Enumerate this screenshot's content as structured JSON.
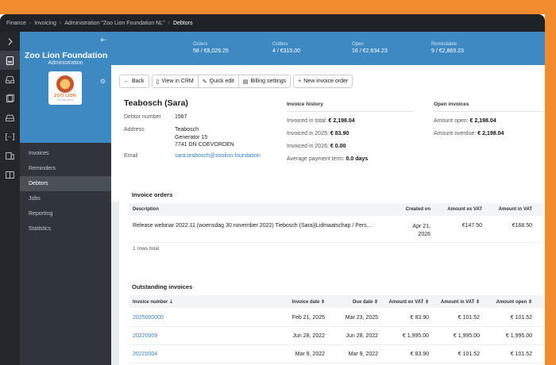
{
  "breadcrumb": {
    "items": [
      "Finance",
      "Invoicing",
      "Administration \"Zoo Lion Foundation NL\""
    ],
    "current": "Debtors",
    "separator": "›"
  },
  "sidebar": {
    "org_name": "Zoo Lion Foundation",
    "org_sub": "Administration",
    "logo_text": "ZOO LION",
    "logo_sub": "FOUNDATION",
    "items": [
      {
        "label": "Invoices"
      },
      {
        "label": "Reminders"
      },
      {
        "label": "Debtors"
      },
      {
        "label": "Jobs"
      },
      {
        "label": "Reporting"
      },
      {
        "label": "Statistics"
      }
    ]
  },
  "stats": [
    {
      "label": "Orders",
      "value": "58 / €8,029.25"
    },
    {
      "label": "Outbox",
      "value": "4 / €315.00"
    },
    {
      "label": "Open",
      "value": "16 / €2,634.23"
    },
    {
      "label": "Remindable",
      "value": "9 / €2,869.23"
    }
  ],
  "toolbar": {
    "back": "Back",
    "view_crm": "View in CRM",
    "quick_edit": "Quick edit",
    "billing_settings": "Billing settings",
    "new_invoice_order": "New invoice order"
  },
  "debtor": {
    "name": "Teabosch (Sara)",
    "number_label": "Debtor number",
    "number": "1567",
    "address_label": "Address",
    "address_lines": [
      "Teabosch",
      "Generator 15",
      "7741 DN  COEVORDEN"
    ],
    "email_label": "Email",
    "email": "sara.teabosch@zoolion.foundation"
  },
  "invoice_history": {
    "title": "Invoice history",
    "total_label": "Invoiced in total:",
    "total": "€ 2,198.04",
    "y2025_label": "Invoiced in 2025:",
    "y2025": "€ 83.90",
    "y2026_label": "Invoiced in 2026:",
    "y2026": "€ 0.00",
    "avg_label": "Average payment term:",
    "avg": "0.0 days"
  },
  "open_invoices": {
    "title": "Open invoices",
    "open_label": "Amount open:",
    "open": "€ 2,198.04",
    "overdue_label": "Amount overdue:",
    "overdue": "€ 2,198.04"
  },
  "invoice_orders": {
    "title": "Invoice orders",
    "columns": [
      "Description",
      "Created on",
      "Amount ex VAT",
      "Amount in VAT"
    ],
    "rows": [
      {
        "description": "Release webinar 2022.11 (woensdag 30 november 2022) Tiebosch (Sara)|Lidmaatschap / Pers...",
        "created_1": "Apr 21,",
        "created_2": "2026",
        "ex": "€147.50",
        "in": "€168.50"
      }
    ],
    "footer": "1 rows total"
  },
  "outstanding": {
    "title": "Outstanding invoices",
    "columns": [
      "Invoice number ⇣",
      "Invoice date ⇕",
      "Due date ⇕",
      "Amount ex VAT ⇕",
      "Amount in VAT ⇕",
      "Amount open ⇕"
    ],
    "rows": [
      {
        "number": "2025000000",
        "date": "Feb 21, 2025",
        "due": "Mar 23, 2025",
        "ex": "€ 83.90",
        "in": "€ 101.52",
        "open": "€ 101.52"
      },
      {
        "number": "20220009",
        "date": "Jun 28, 2022",
        "due": "Jun 28, 2022",
        "ex": "€ 1,995.00",
        "in": "€ 1,995.00",
        "open": "€ 1,995.00"
      },
      {
        "number": "20220004",
        "date": "Mar 9, 2022",
        "due": "Mar 9, 2022",
        "ex": "€ 83.90",
        "in": "€ 101.52",
        "open": "€ 101.52"
      }
    ]
  }
}
